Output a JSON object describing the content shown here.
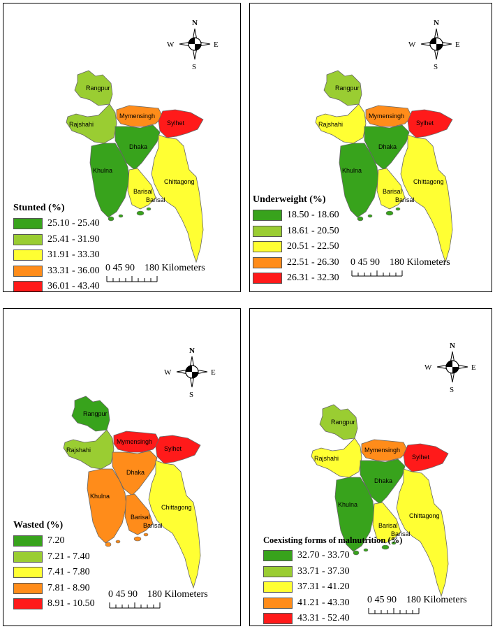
{
  "colors": {
    "class1": "#38a31c",
    "class2": "#9acd32",
    "class3": "#ffff33",
    "class4": "#ff8c1a",
    "class5": "#ff1a1a",
    "border": "#666666"
  },
  "compass": {
    "north": "N",
    "south": "S",
    "east": "E",
    "west": "W"
  },
  "scale": {
    "ticks": "0 45 90",
    "end": "180 Kilometers"
  },
  "regions": [
    "Rangpur",
    "Rajshahi",
    "Mymensingh",
    "Sylhet",
    "Dhaka",
    "Khulna",
    "Barisal",
    "Barisal",
    "Chittagong"
  ],
  "panels": [
    {
      "title": "Stunted (%)",
      "classes": [
        "25.10 - 25.40",
        "25.41 - 31.90",
        "31.91 - 33.30",
        "33.31 - 36.00",
        "36.01 - 43.40"
      ],
      "fill": {
        "Rangpur": 2,
        "Rajshahi": 2,
        "Mymensingh": 4,
        "Sylhet": 5,
        "Dhaka": 1,
        "Khulna": 1,
        "Barisal": 3,
        "Chittagong": 3
      }
    },
    {
      "title": "Underweight (%)",
      "classes": [
        "18.50 - 18.60",
        "18.61 - 20.50",
        "20.51 - 22.50",
        "22.51 - 26.30",
        "26.31 - 32.30"
      ],
      "fill": {
        "Rangpur": 2,
        "Rajshahi": 3,
        "Mymensingh": 4,
        "Sylhet": 5,
        "Dhaka": 1,
        "Khulna": 1,
        "Barisal": 3,
        "Chittagong": 3
      }
    },
    {
      "title": "Wasted (%)",
      "classes": [
        "7.20",
        "7.21 - 7.40",
        "7.41 - 7.80",
        "7.81 - 8.90",
        "8.91 - 10.50"
      ],
      "fill": {
        "Rangpur": 1,
        "Rajshahi": 2,
        "Mymensingh": 5,
        "Sylhet": 5,
        "Dhaka": 4,
        "Khulna": 4,
        "Barisal": 4,
        "Chittagong": 3
      }
    },
    {
      "title": "Coexisting forms of malnutrition (%)",
      "classes": [
        "32.70 - 33.70",
        "33.71 - 37.30",
        "37.31 - 41.20",
        "41.21 - 43.30",
        "43.31 - 52.40"
      ],
      "fill": {
        "Rangpur": 2,
        "Rajshahi": 3,
        "Mymensingh": 4,
        "Sylhet": 5,
        "Dhaka": 1,
        "Khulna": 1,
        "Barisal": 3,
        "Chittagong": 3
      }
    }
  ]
}
